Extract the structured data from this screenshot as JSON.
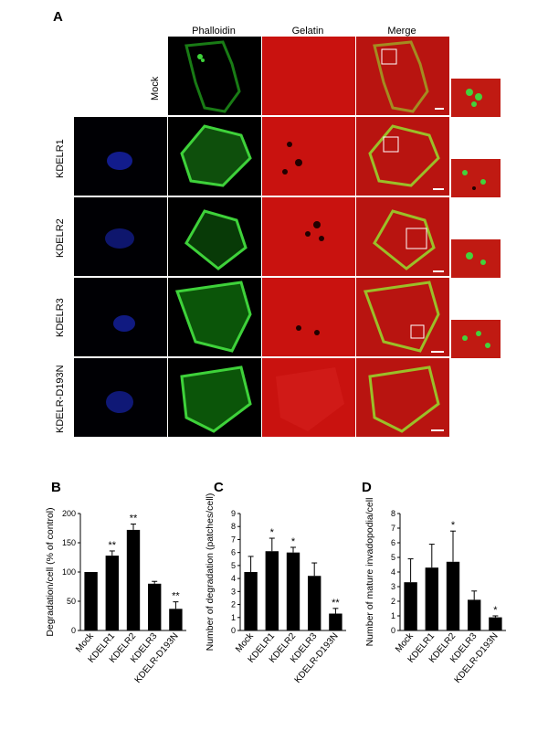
{
  "panel_a": {
    "letter": "A",
    "columns": [
      "Phalloidin",
      "Gelatin",
      "Merge"
    ],
    "rows": [
      "Mock",
      "KDELR1",
      "KDELR2",
      "KDELR3",
      "KDELR-D193N"
    ]
  },
  "panel_b": {
    "letter": "B"
  },
  "panel_c": {
    "letter": "C"
  },
  "panel_d": {
    "letter": "D"
  },
  "colors": {
    "bar": "#000000",
    "phalloidin": "#22c21e",
    "gelatin": "#c9120f",
    "dapi": "#1b2bd6"
  },
  "chart_data": [
    {
      "type": "bar",
      "categories": [
        "Mock",
        "KDELR1",
        "KDELR2",
        "KDELR3",
        "KDELR-D193N"
      ],
      "values": [
        100,
        128,
        172,
        80,
        37
      ],
      "errors": [
        0,
        8,
        10,
        4,
        12
      ],
      "significance": [
        "",
        "**",
        "**",
        "",
        "**"
      ],
      "ylabel": "Degradation/cell (% of control)",
      "ylim": [
        0,
        200
      ],
      "yticks": [
        0,
        50,
        100,
        150,
        200
      ]
    },
    {
      "type": "bar",
      "categories": [
        "Mock",
        "KDELR1",
        "KDELR2",
        "KDELR3",
        "KDELR-D193N"
      ],
      "values": [
        4.5,
        6.1,
        6.0,
        4.2,
        1.3
      ],
      "errors": [
        1.2,
        1.0,
        0.4,
        1.0,
        0.4
      ],
      "significance": [
        "",
        "*",
        "*",
        "",
        "**"
      ],
      "ylabel": "Number of degradation (patches/cell)",
      "ylim": [
        0,
        9
      ],
      "yticks": [
        0,
        1,
        2,
        3,
        4,
        5,
        6,
        7,
        8,
        9
      ]
    },
    {
      "type": "bar",
      "categories": [
        "Mock",
        "KDELR1",
        "KDELR2",
        "KDELR3",
        "KDELR-D193N"
      ],
      "values": [
        3.3,
        4.3,
        4.7,
        2.1,
        0.9
      ],
      "errors": [
        1.6,
        1.6,
        2.1,
        0.6,
        0.1
      ],
      "significance": [
        "",
        "",
        "*",
        "",
        "*"
      ],
      "ylabel": "Number of mature invadopodia/cell",
      "ylim": [
        0,
        8
      ],
      "yticks": [
        0,
        1,
        2,
        3,
        4,
        5,
        6,
        7,
        8
      ]
    }
  ]
}
